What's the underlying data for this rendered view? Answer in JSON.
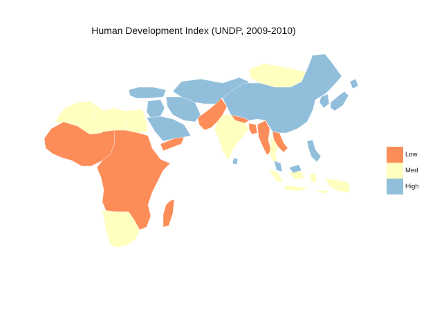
{
  "title": "Human Development Index (UNDP, 2009-2010)",
  "legend": [
    {
      "label": "Low",
      "color": "#FC8D59"
    },
    {
      "label": "Med",
      "color": "#FFFFBF"
    },
    {
      "label": "High",
      "color": "#91BFDB"
    }
  ],
  "regions": [
    {
      "name": "West Africa",
      "category": "Low"
    },
    {
      "name": "Central and East Africa",
      "category": "Low"
    },
    {
      "name": "Madagascar",
      "category": "Low"
    },
    {
      "name": "Yemen",
      "category": "Low"
    },
    {
      "name": "Pakistan and Afghanistan",
      "category": "Low"
    },
    {
      "name": "Nepal and Bangladesh",
      "category": "Low"
    },
    {
      "name": "Myanmar",
      "category": "Low"
    },
    {
      "name": "Laos and Cambodia",
      "category": "Low"
    },
    {
      "name": "Morocco and Algeria",
      "category": "Med"
    },
    {
      "name": "Egypt",
      "category": "Med"
    },
    {
      "name": "Southern Africa",
      "category": "Med"
    },
    {
      "name": "India",
      "category": "Med"
    },
    {
      "name": "Mongolia",
      "category": "Med"
    },
    {
      "name": "Indonesia",
      "category": "Med"
    },
    {
      "name": "Thailand",
      "category": "Med"
    },
    {
      "name": "Libya and Tunisia",
      "category": "High"
    },
    {
      "name": "Turkey",
      "category": "High"
    },
    {
      "name": "Middle East",
      "category": "High"
    },
    {
      "name": "Iran",
      "category": "High"
    },
    {
      "name": "Saudi Arabia and Gulf",
      "category": "High"
    },
    {
      "name": "Central Asia",
      "category": "High"
    },
    {
      "name": "China",
      "category": "High"
    },
    {
      "name": "Japan",
      "category": "High"
    },
    {
      "name": "Korea",
      "category": "High"
    },
    {
      "name": "Malaysia",
      "category": "High"
    },
    {
      "name": "Philippines",
      "category": "High"
    },
    {
      "name": "Sri Lanka",
      "category": "High"
    }
  ]
}
